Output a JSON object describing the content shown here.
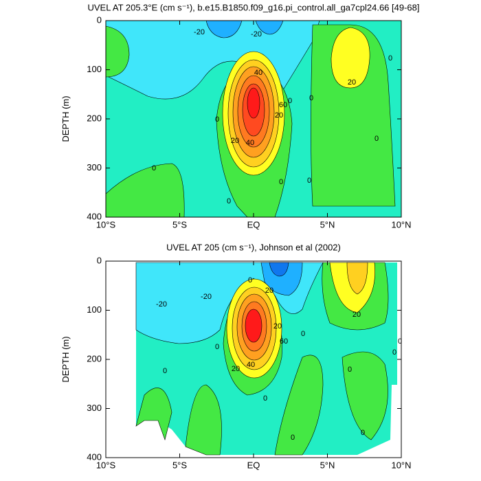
{
  "chart_data": [
    {
      "type": "contour",
      "title": "UVEL AT 205.3°E (cm s⁻¹), b.e15.B1850.f09_g16.pi_control.all_ga7cpl24.66 [49-68]",
      "ylabel": "DEPTH (m)",
      "xlim": [
        -10,
        10
      ],
      "xticks": [
        {
          "value": -10,
          "label": "10°S"
        },
        {
          "value": -5,
          "label": "5°S"
        },
        {
          "value": 0,
          "label": "EQ"
        },
        {
          "value": 5,
          "label": "5°N"
        },
        {
          "value": 10,
          "label": "10°N"
        }
      ],
      "ylim": [
        0,
        400
      ],
      "y_inverted": true,
      "yticks": [
        0,
        100,
        200,
        300,
        400
      ],
      "contour_labels": [
        -20,
        -20,
        40,
        60,
        20,
        0,
        20,
        40,
        0,
        0,
        0,
        0,
        0,
        0,
        20,
        0,
        0
      ]
    },
    {
      "type": "contour",
      "title": "UVEL AT 205 (cm s⁻¹), Johnson et al (2002)",
      "ylabel": "DEPTH (m)",
      "xlim": [
        -10,
        10
      ],
      "xticks": [
        {
          "value": -10,
          "label": "10°S"
        },
        {
          "value": -5,
          "label": "5°S"
        },
        {
          "value": 0,
          "label": "EQ"
        },
        {
          "value": 5,
          "label": "5°N"
        },
        {
          "value": 10,
          "label": "10°N"
        }
      ],
      "ylim": [
        0,
        400
      ],
      "y_inverted": true,
      "yticks": [
        0,
        100,
        200,
        300,
        400
      ],
      "contour_labels": [
        -20,
        -20,
        0,
        20,
        20,
        60,
        0,
        20,
        0,
        0,
        40,
        20,
        0,
        0,
        0,
        0,
        0,
        0
      ]
    }
  ]
}
